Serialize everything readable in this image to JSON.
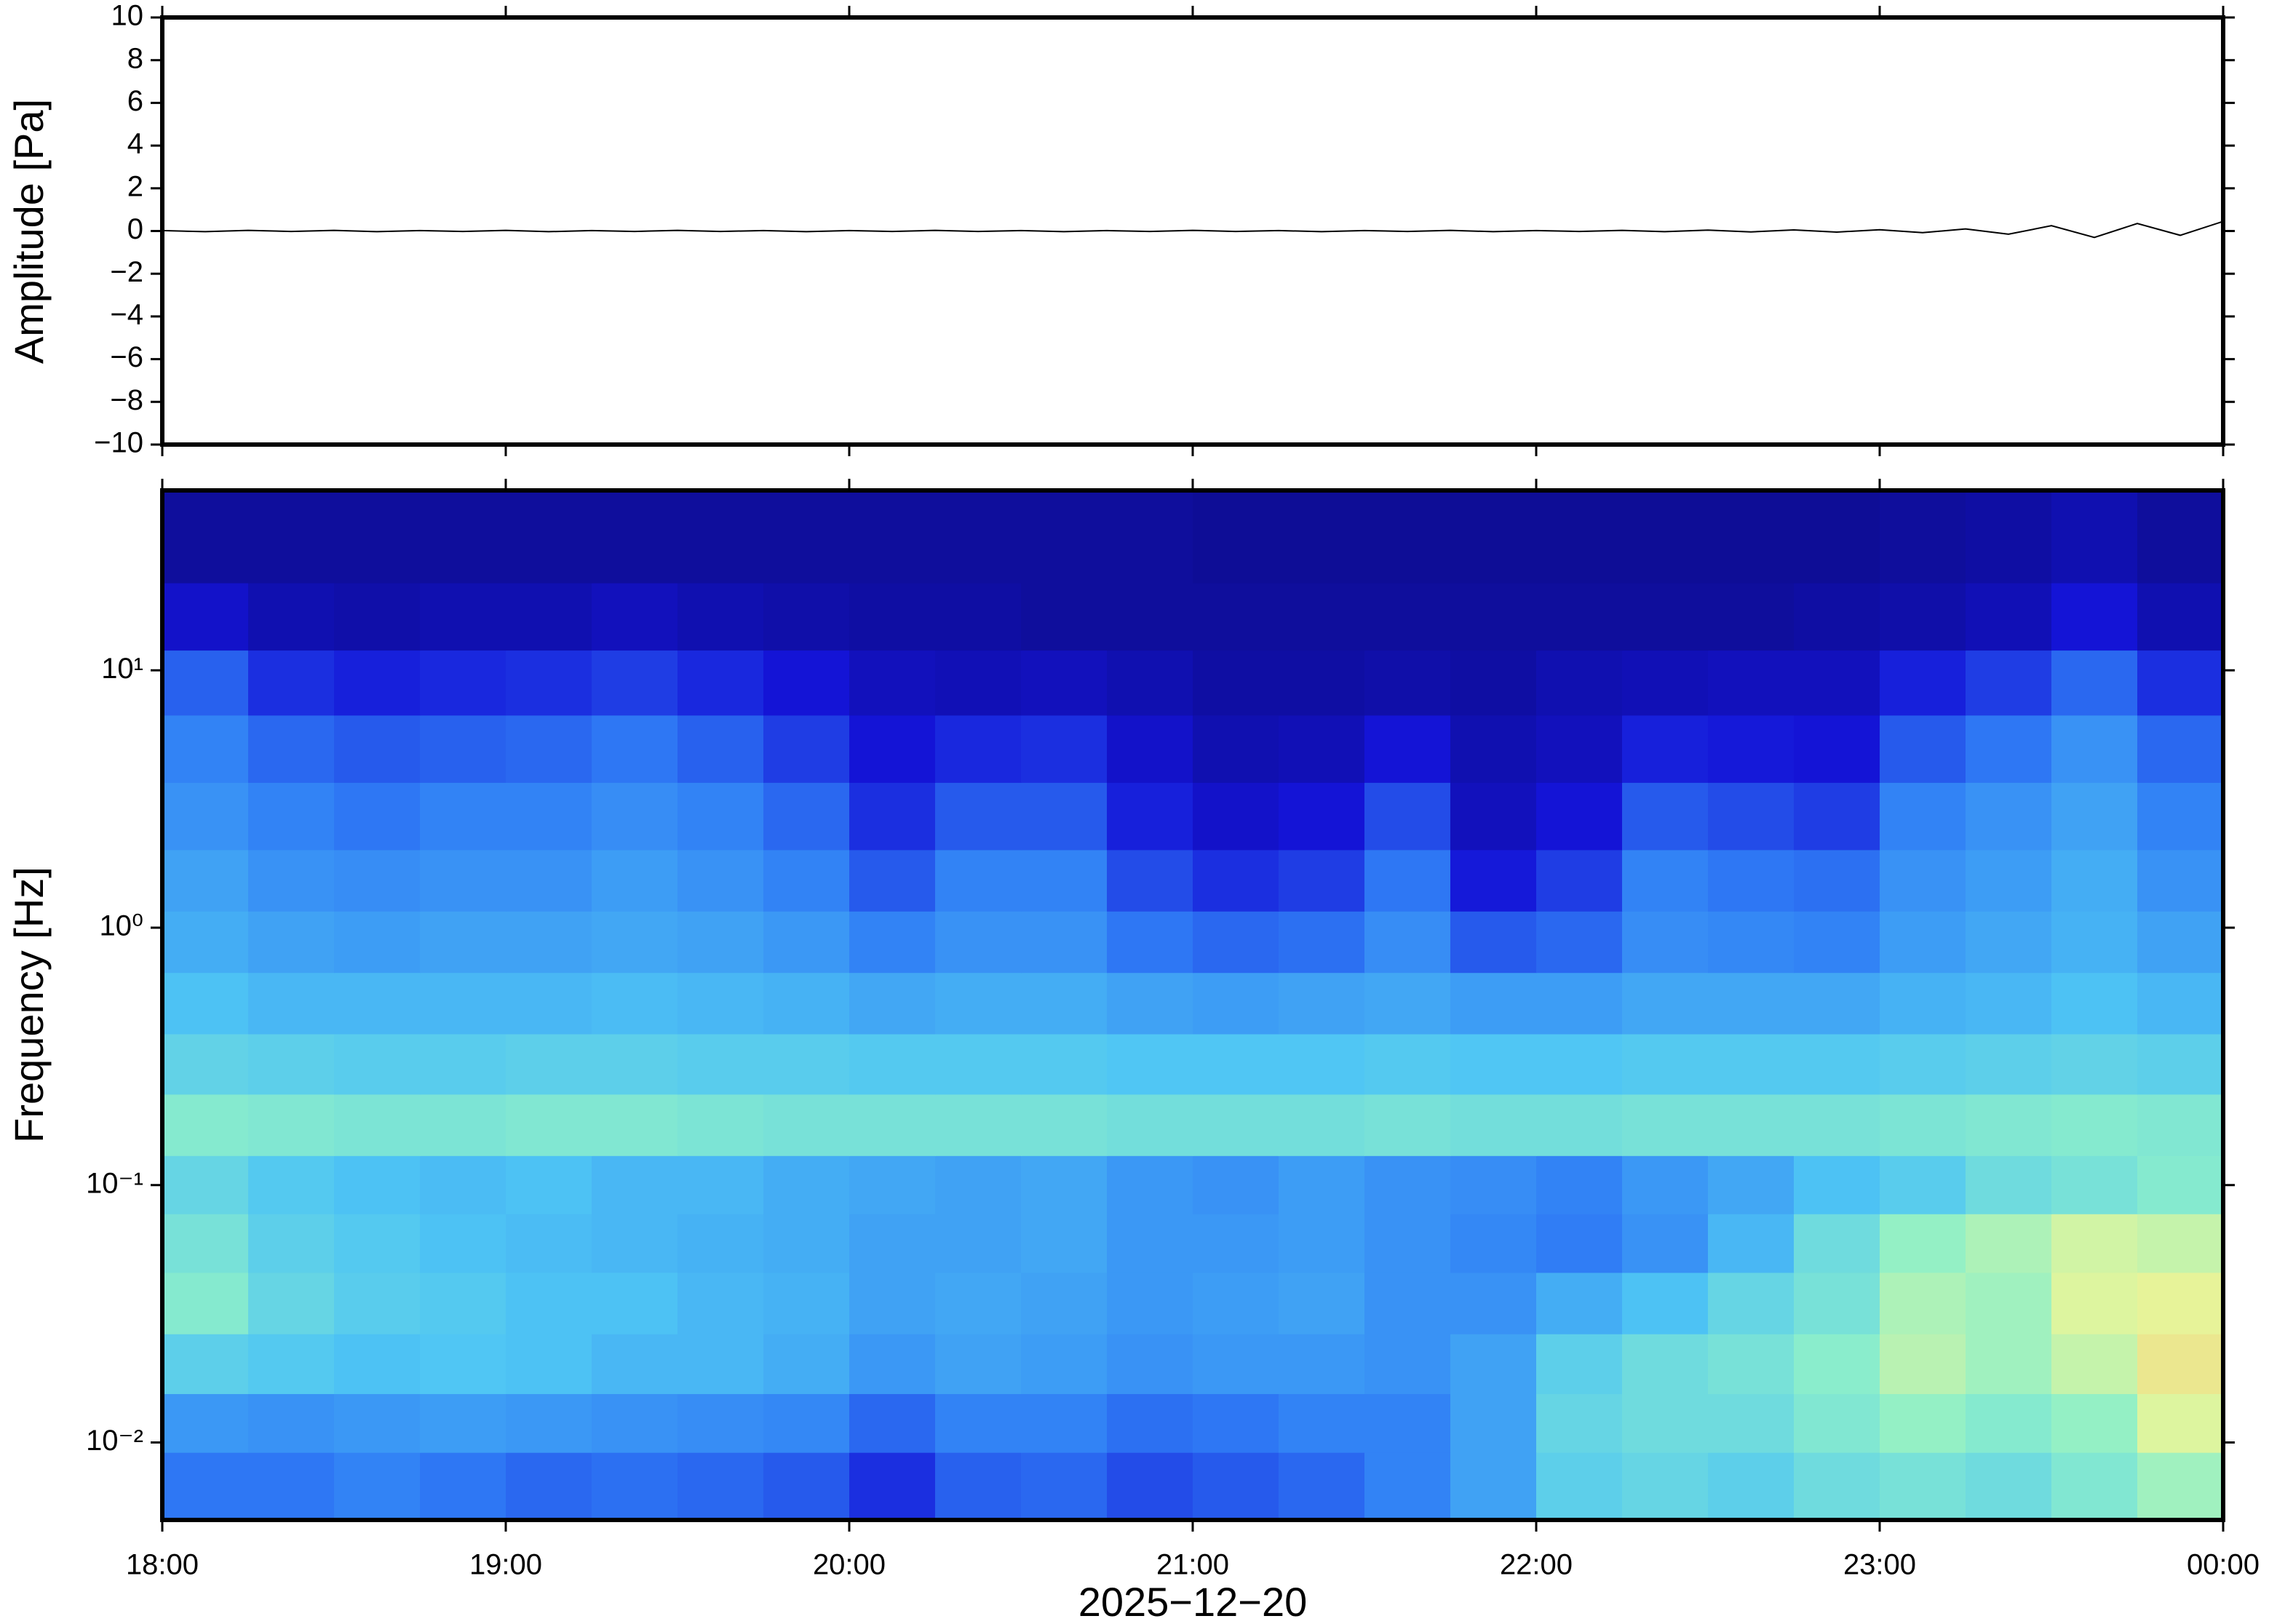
{
  "chart_data": [
    {
      "type": "line",
      "ylabel": "Amplitude [Pa]",
      "color": "#000000",
      "xlim": [
        18,
        24
      ],
      "ylim": [
        -10,
        10
      ],
      "yticks": [
        {
          "value": -10,
          "label": "−10"
        },
        {
          "value": -8,
          "label": "−8"
        },
        {
          "value": -6,
          "label": "−6"
        },
        {
          "value": -4,
          "label": "−4"
        },
        {
          "value": -2,
          "label": "−2"
        },
        0,
        2,
        4,
        6,
        8,
        10
      ],
      "x": [
        18,
        18.125,
        18.25,
        18.375,
        18.5,
        18.625,
        18.75,
        18.875,
        19,
        19.125,
        19.25,
        19.375,
        19.5,
        19.625,
        19.75,
        19.875,
        20,
        20.125,
        20.25,
        20.375,
        20.5,
        20.625,
        20.75,
        20.875,
        21,
        21.125,
        21.25,
        21.375,
        21.5,
        21.625,
        21.75,
        21.875,
        22,
        22.125,
        22.25,
        22.375,
        22.5,
        22.625,
        22.75,
        22.875,
        23,
        23.125,
        23.25,
        23.375,
        23.5,
        23.625,
        23.75,
        23.875,
        24
      ],
      "values": [
        0.02,
        -0.03,
        0.03,
        -0.02,
        0.03,
        -0.03,
        0.02,
        -0.02,
        0.03,
        -0.03,
        0.02,
        -0.02,
        0.03,
        -0.02,
        0.02,
        -0.03,
        0.02,
        -0.02,
        0.03,
        -0.02,
        0.02,
        -0.03,
        0.02,
        -0.02,
        0.03,
        -0.02,
        0.02,
        -0.03,
        0.02,
        -0.02,
        0.03,
        -0.03,
        0.02,
        -0.02,
        0.03,
        -0.03,
        0.04,
        -0.04,
        0.05,
        -0.05,
        0.06,
        -0.08,
        0.1,
        -0.15,
        0.25,
        -0.3,
        0.35,
        -0.2,
        0.45
      ]
    },
    {
      "type": "heatmap",
      "ylabel": "Frequency [Hz]",
      "xlabel": "2025−12−20",
      "ylog": true,
      "colormap": [
        "#0c0a7c",
        "#1414d8",
        "#2f7bf5",
        "#4fc6f4",
        "#8ff0c8",
        "#e6f59a",
        "#f5c878",
        "#f07850"
      ],
      "xlim": [
        18,
        24
      ],
      "ylim": [
        0.005,
        50
      ],
      "xticks": [
        {
          "value": 18,
          "label": "18:00"
        },
        {
          "value": 19,
          "label": "19:00"
        },
        {
          "value": 20,
          "label": "20:00"
        },
        {
          "value": 21,
          "label": "21:00"
        },
        {
          "value": 22,
          "label": "22:00"
        },
        {
          "value": 23,
          "label": "23:00"
        },
        {
          "value": 24,
          "label": "00:00"
        }
      ],
      "yticks": [
        {
          "value": 0.01,
          "label": "10⁻²"
        },
        {
          "value": 0.1,
          "label": "10⁻¹"
        },
        {
          "value": 1,
          "label": "10⁰"
        },
        {
          "value": 10,
          "label": "10¹"
        }
      ],
      "x": [
        18.125,
        18.375,
        18.625,
        18.875,
        19.125,
        19.375,
        19.625,
        19.875,
        20.125,
        20.375,
        20.625,
        20.875,
        21.125,
        21.375,
        21.625,
        21.875,
        22.125,
        22.375,
        22.625,
        22.875,
        23.125,
        23.375,
        23.625,
        23.875
      ],
      "y": [
        0.007,
        0.012,
        0.02,
        0.035,
        0.06,
        0.1,
        0.17,
        0.3,
        0.5,
        0.9,
        1.5,
        2.7,
        5,
        9,
        16,
        30
      ],
      "z": [
        [
          0.28,
          0.28,
          0.3,
          0.28,
          0.26,
          0.27,
          0.26,
          0.24,
          0.18,
          0.25,
          0.26,
          0.22,
          0.24,
          0.26,
          0.3,
          0.36,
          0.46,
          0.48,
          0.46,
          0.5,
          0.52,
          0.5,
          0.54,
          0.6
        ],
        [
          0.34,
          0.33,
          0.34,
          0.35,
          0.34,
          0.33,
          0.32,
          0.31,
          0.26,
          0.3,
          0.3,
          0.27,
          0.28,
          0.3,
          0.3,
          0.36,
          0.48,
          0.5,
          0.5,
          0.54,
          0.58,
          0.55,
          0.58,
          0.7
        ],
        [
          0.46,
          0.44,
          0.42,
          0.43,
          0.42,
          0.4,
          0.4,
          0.38,
          0.34,
          0.36,
          0.35,
          0.33,
          0.34,
          0.34,
          0.33,
          0.36,
          0.46,
          0.5,
          0.52,
          0.56,
          0.64,
          0.6,
          0.66,
          0.76
        ],
        [
          0.55,
          0.48,
          0.45,
          0.44,
          0.42,
          0.42,
          0.4,
          0.39,
          0.36,
          0.37,
          0.36,
          0.34,
          0.35,
          0.36,
          0.33,
          0.33,
          0.38,
          0.42,
          0.48,
          0.52,
          0.62,
          0.6,
          0.7,
          0.72
        ],
        [
          0.52,
          0.46,
          0.44,
          0.42,
          0.41,
          0.4,
          0.39,
          0.38,
          0.36,
          0.36,
          0.37,
          0.34,
          0.34,
          0.35,
          0.33,
          0.31,
          0.29,
          0.33,
          0.4,
          0.5,
          0.58,
          0.62,
          0.68,
          0.66
        ],
        [
          0.48,
          0.44,
          0.42,
          0.41,
          0.42,
          0.4,
          0.4,
          0.38,
          0.37,
          0.36,
          0.37,
          0.34,
          0.33,
          0.35,
          0.33,
          0.32,
          0.3,
          0.34,
          0.37,
          0.42,
          0.45,
          0.5,
          0.52,
          0.55
        ],
        [
          0.55,
          0.54,
          0.53,
          0.53,
          0.54,
          0.54,
          0.53,
          0.52,
          0.52,
          0.52,
          0.52,
          0.51,
          0.51,
          0.51,
          0.52,
          0.51,
          0.51,
          0.52,
          0.52,
          0.52,
          0.53,
          0.54,
          0.55,
          0.54
        ],
        [
          0.47,
          0.46,
          0.45,
          0.45,
          0.46,
          0.46,
          0.45,
          0.45,
          0.44,
          0.44,
          0.44,
          0.43,
          0.43,
          0.43,
          0.44,
          0.43,
          0.43,
          0.44,
          0.44,
          0.44,
          0.45,
          0.46,
          0.47,
          0.46
        ],
        [
          0.42,
          0.4,
          0.4,
          0.4,
          0.4,
          0.41,
          0.4,
          0.39,
          0.37,
          0.38,
          0.38,
          0.36,
          0.35,
          0.36,
          0.37,
          0.35,
          0.35,
          0.37,
          0.37,
          0.37,
          0.39,
          0.4,
          0.42,
          0.4
        ],
        [
          0.38,
          0.36,
          0.35,
          0.36,
          0.36,
          0.37,
          0.36,
          0.34,
          0.3,
          0.33,
          0.33,
          0.28,
          0.26,
          0.27,
          0.32,
          0.24,
          0.26,
          0.32,
          0.31,
          0.3,
          0.35,
          0.37,
          0.39,
          0.36
        ],
        [
          0.36,
          0.33,
          0.32,
          0.33,
          0.33,
          0.35,
          0.33,
          0.3,
          0.24,
          0.3,
          0.3,
          0.22,
          0.18,
          0.2,
          0.28,
          0.15,
          0.2,
          0.3,
          0.28,
          0.27,
          0.33,
          0.35,
          0.38,
          0.33
        ],
        [
          0.33,
          0.3,
          0.28,
          0.3,
          0.3,
          0.32,
          0.3,
          0.26,
          0.18,
          0.24,
          0.24,
          0.16,
          0.12,
          0.14,
          0.22,
          0.1,
          0.14,
          0.24,
          0.22,
          0.2,
          0.3,
          0.33,
          0.36,
          0.3
        ],
        [
          0.3,
          0.26,
          0.24,
          0.25,
          0.26,
          0.28,
          0.25,
          0.2,
          0.14,
          0.17,
          0.18,
          0.12,
          0.08,
          0.09,
          0.14,
          0.08,
          0.1,
          0.16,
          0.15,
          0.14,
          0.24,
          0.28,
          0.33,
          0.26
        ],
        [
          0.25,
          0.18,
          0.16,
          0.17,
          0.18,
          0.2,
          0.17,
          0.14,
          0.1,
          0.09,
          0.1,
          0.08,
          0.06,
          0.06,
          0.07,
          0.06,
          0.08,
          0.09,
          0.1,
          0.1,
          0.16,
          0.2,
          0.26,
          0.18
        ],
        [
          0.12,
          0.08,
          0.07,
          0.08,
          0.08,
          0.1,
          0.08,
          0.07,
          0.06,
          0.06,
          0.05,
          0.05,
          0.05,
          0.05,
          0.05,
          0.05,
          0.05,
          0.05,
          0.05,
          0.06,
          0.07,
          0.09,
          0.14,
          0.08
        ],
        [
          0.05,
          0.05,
          0.05,
          0.05,
          0.05,
          0.05,
          0.05,
          0.05,
          0.05,
          0.05,
          0.05,
          0.05,
          0.04,
          0.04,
          0.04,
          0.04,
          0.04,
          0.04,
          0.04,
          0.04,
          0.05,
          0.06,
          0.08,
          0.05
        ]
      ]
    }
  ]
}
